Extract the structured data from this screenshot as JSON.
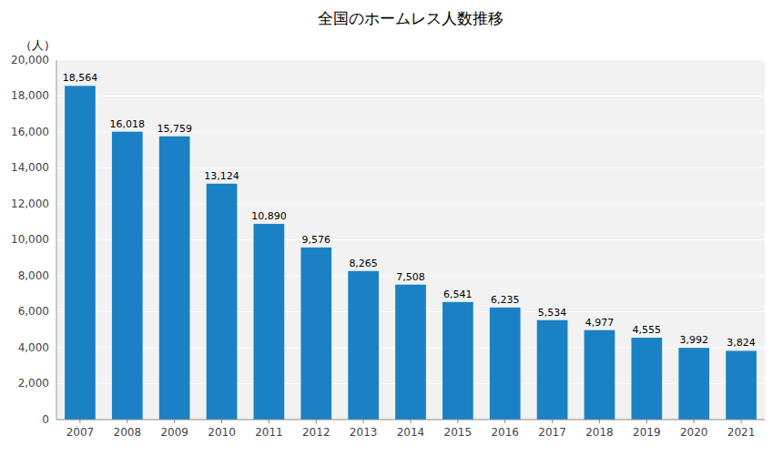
{
  "chart_data": {
    "type": "bar",
    "title": "全国のホームレス人数推移",
    "ylabel": "（人）",
    "categories": [
      "2007",
      "2008",
      "2009",
      "2010",
      "2011",
      "2012",
      "2013",
      "2014",
      "2015",
      "2016",
      "2017",
      "2018",
      "2019",
      "2020",
      "2021"
    ],
    "values": [
      18564,
      16018,
      15759,
      13124,
      10890,
      9576,
      8265,
      7508,
      6541,
      6235,
      5534,
      4977,
      4555,
      3992,
      3824
    ],
    "value_labels": [
      "18,564",
      "16,018",
      "15,759",
      "13,124",
      "10,890",
      "9,576",
      "8,265",
      "7,508",
      "6,541",
      "6,235",
      "5,534",
      "4,977",
      "4,555",
      "3,992",
      "3,824"
    ],
    "data_labels": true,
    "color": "#1a82c4",
    "ylim": [
      0,
      20000
    ],
    "yticks": [
      0,
      {
        "value": 2000,
        "label": "2,000"
      },
      {
        "value": 4000,
        "label": "4,000"
      },
      {
        "value": 6000,
        "label": "6,000"
      },
      {
        "value": 8000,
        "label": "8,000"
      },
      {
        "value": 10000,
        "label": "10,000"
      },
      {
        "value": 12000,
        "label": "12,000"
      },
      {
        "value": 14000,
        "label": "14,000"
      },
      {
        "value": 16000,
        "label": "16,000"
      },
      {
        "value": 18000,
        "label": "18,000"
      },
      {
        "value": 20000,
        "label": "20,000"
      }
    ],
    "grid": true
  }
}
